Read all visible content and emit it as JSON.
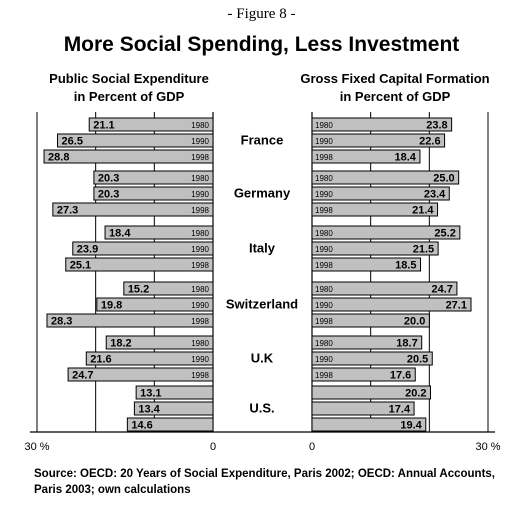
{
  "figure_label": "- Figure 8 -",
  "title": "More Social Spending, Less Investment",
  "source": "Source: OECD: 20 Years of Social Expenditure, Paris 2002; OECD: Annual Accounts, Paris 2003; own calculations",
  "chart_data": [
    {
      "type": "bar",
      "orientation": "horizontal",
      "direction": "leftward",
      "title_line1": "Public Social Expenditure",
      "title_line2": "in Percent of GDP",
      "xlim": [
        0,
        30
      ],
      "ticks": [
        "30 %",
        "0"
      ],
      "countries": [
        "France",
        "Germany",
        "Italy",
        "Switzerland",
        "U.K",
        "U.S."
      ],
      "years": [
        "1980",
        "1990",
        "1998"
      ],
      "series": [
        {
          "name": "1980",
          "values": [
            21.1,
            20.3,
            18.4,
            15.2,
            18.2,
            13.1
          ]
        },
        {
          "name": "1990",
          "values": [
            26.5,
            20.3,
            23.9,
            19.8,
            21.6,
            13.4
          ]
        },
        {
          "name": "1998",
          "values": [
            28.8,
            27.3,
            25.1,
            28.3,
            24.7,
            14.6
          ]
        }
      ],
      "grid": true,
      "bar_color": "#c0c0c0"
    },
    {
      "type": "bar",
      "orientation": "horizontal",
      "direction": "rightward",
      "title_line1": "Gross Fixed Capital Formation",
      "title_line2": "in Percent of GDP",
      "xlim": [
        0,
        30
      ],
      "ticks": [
        "0",
        "30 %"
      ],
      "countries": [
        "France",
        "Germany",
        "Italy",
        "Switzerland",
        "U.K",
        "U.S."
      ],
      "years": [
        "1980",
        "1990",
        "1998"
      ],
      "series": [
        {
          "name": "1980",
          "values": [
            23.8,
            25.0,
            25.2,
            24.7,
            18.7,
            20.2
          ]
        },
        {
          "name": "1990",
          "values": [
            22.6,
            23.4,
            21.5,
            27.1,
            20.5,
            17.4
          ]
        },
        {
          "name": "1998",
          "values": [
            18.4,
            21.4,
            18.5,
            20.0,
            17.6,
            19.4
          ]
        }
      ],
      "grid": true,
      "bar_color": "#c0c0c0"
    }
  ]
}
